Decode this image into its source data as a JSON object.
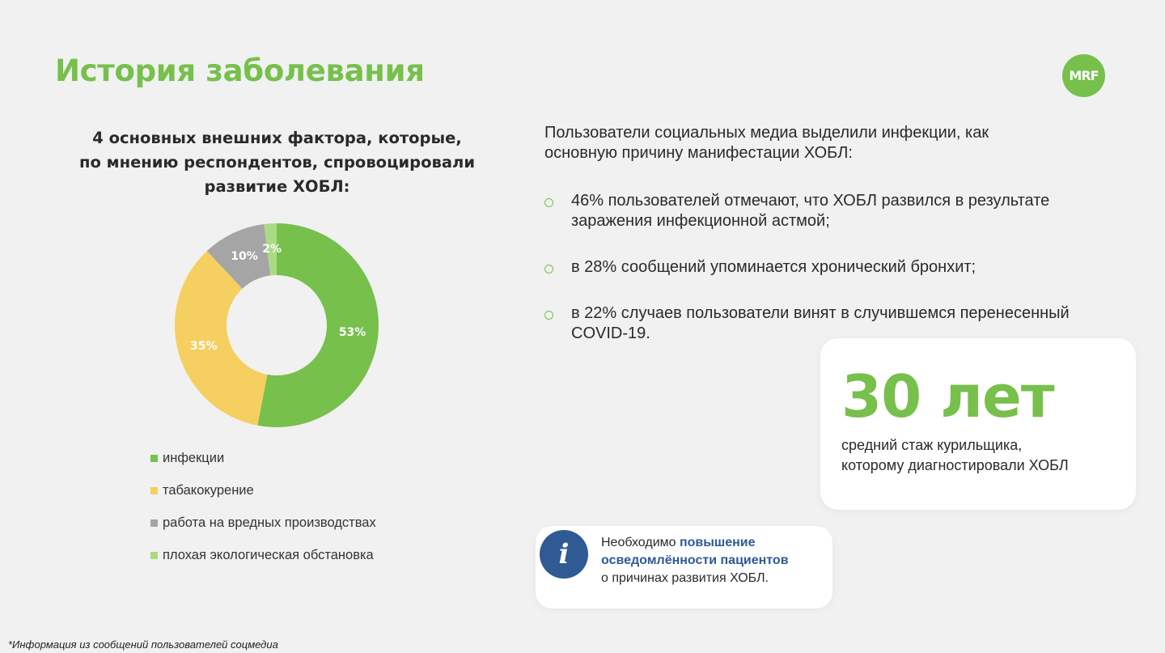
{
  "header": {
    "title": "История заболевания",
    "logo_text": "MRF"
  },
  "chart_heading": {
    "lines": [
      "4 основных внешних фактора, которые,",
      "по мнению респондентов, спровоцировали",
      "развитие ХОБЛ:"
    ]
  },
  "chart_data": {
    "type": "pie",
    "style": "donut",
    "title": "",
    "categories": [
      "инфекции",
      "табакокурение",
      "работа на вредных производствах",
      "плохая экологическая обстановка"
    ],
    "values": [
      53,
      35,
      10,
      2
    ],
    "labels": [
      "53%",
      "35%",
      "10%",
      "2%"
    ],
    "colors": [
      "#76c04b",
      "#f5cf5f",
      "#a5a5a5",
      "#a9db84"
    ],
    "legend_position": "bottom"
  },
  "right": {
    "intro": "Пользователи социальных медиа выделили инфекции, как основную причину манифестации ХОБЛ:",
    "bullets": [
      "46% пользователей отмечают, что ХОБЛ развился в результате заражения инфекционной астмой;",
      "в 28% сообщений упоминается хронический бронхит;",
      "в 22% случаев пользователи винят в случившемся перенесенный COVID-19."
    ]
  },
  "stat_card": {
    "value": "30 лет",
    "desc_line1": "средний стаж курильщика,",
    "desc_line2": "которому диагностировали ХОБЛ"
  },
  "info_card": {
    "icon_text": "i",
    "text_before": "Необходимо ",
    "highlight": "повышение осведомлённости пациентов",
    "text_after": "о причинах развития ХОБЛ."
  },
  "footnote": "*Информация из сообщений пользователей соцмедиа",
  "colors": {
    "accent_green": "#76c04b",
    "accent_blue": "#2f5a94",
    "background": "#f1f1f2"
  }
}
